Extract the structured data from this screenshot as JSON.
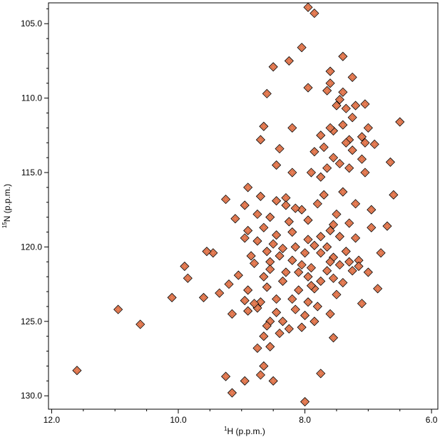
{
  "chart_data": {
    "type": "scatter",
    "title": "",
    "xlabel": {
      "sup": "1",
      "main": "H (p.p.m.)"
    },
    "ylabel": {
      "sup": "15",
      "main": "N (p.p.m.)"
    },
    "xlim": [
      12.05,
      5.9
    ],
    "ylim": [
      103.6,
      130.9
    ],
    "x_reversed": true,
    "y_reversed": true,
    "grid": false,
    "x_ticks": [
      {
        "value": 12.0,
        "label": "12.0"
      },
      {
        "value": 10.0,
        "label": "10.0"
      },
      {
        "value": 8.0,
        "label": "8.0"
      },
      {
        "value": 6.0,
        "label": "6.0"
      }
    ],
    "y_ticks": [
      {
        "value": 105.0,
        "label": "105.0"
      },
      {
        "value": 110.0,
        "label": "110.0"
      },
      {
        "value": 115.0,
        "label": "115.0"
      },
      {
        "value": 120.0,
        "label": "120.0"
      },
      {
        "value": 125.0,
        "label": "125.0"
      },
      {
        "value": 130.0,
        "label": "130.0"
      }
    ],
    "colors": {
      "peak_fill": "#e8825a",
      "peak_edge": "#000000"
    },
    "series": [
      {
        "points": [
          [
            7.95,
            103.9
          ],
          [
            7.85,
            104.3
          ],
          [
            8.05,
            106.6
          ],
          [
            8.25,
            107.5
          ],
          [
            8.5,
            107.9
          ],
          [
            7.6,
            108.2
          ],
          [
            7.4,
            107.2
          ],
          [
            7.25,
            108.6
          ],
          [
            7.6,
            109.0
          ],
          [
            7.95,
            109.3
          ],
          [
            7.65,
            109.5
          ],
          [
            7.4,
            109.6
          ],
          [
            8.6,
            109.7
          ],
          [
            7.45,
            110.1
          ],
          [
            7.5,
            110.5
          ],
          [
            7.2,
            110.5
          ],
          [
            7.35,
            110.7
          ],
          [
            7.05,
            110.4
          ],
          [
            7.25,
            111.3
          ],
          [
            7.4,
            111.8
          ],
          [
            7.55,
            112.2
          ],
          [
            7.0,
            112.0
          ],
          [
            7.1,
            112.6
          ],
          [
            7.3,
            112.8
          ],
          [
            7.6,
            112.0
          ],
          [
            7.05,
            113.0
          ],
          [
            6.5,
            111.6
          ],
          [
            8.65,
            111.9
          ],
          [
            8.2,
            112.0
          ],
          [
            8.7,
            112.8
          ],
          [
            7.75,
            112.5
          ],
          [
            7.7,
            113.3
          ],
          [
            7.35,
            113.0
          ],
          [
            7.25,
            113.5
          ],
          [
            6.9,
            113.1
          ],
          [
            8.4,
            113.4
          ],
          [
            7.85,
            113.6
          ],
          [
            7.55,
            114.0
          ],
          [
            7.1,
            114.1
          ],
          [
            8.45,
            114.5
          ],
          [
            7.65,
            114.7
          ],
          [
            7.45,
            114.4
          ],
          [
            7.3,
            114.7
          ],
          [
            6.65,
            114.3
          ],
          [
            7.05,
            115.0
          ],
          [
            7.75,
            115.3
          ],
          [
            7.9,
            115.0
          ],
          [
            8.2,
            115.0
          ],
          [
            8.9,
            116.0
          ],
          [
            8.7,
            116.6
          ],
          [
            8.45,
            116.9
          ],
          [
            8.75,
            117.8
          ],
          [
            8.3,
            116.7
          ],
          [
            8.05,
            117.5
          ],
          [
            7.7,
            116.5
          ],
          [
            7.4,
            116.3
          ],
          [
            7.2,
            117.1
          ],
          [
            6.95,
            117.5
          ],
          [
            6.6,
            116.5
          ],
          [
            9.25,
            116.8
          ],
          [
            8.95,
            117.2
          ],
          [
            9.1,
            118.1
          ],
          [
            8.9,
            118.9
          ],
          [
            8.55,
            118.0
          ],
          [
            8.3,
            117.2
          ],
          [
            8.15,
            117.4
          ],
          [
            7.95,
            118.2
          ],
          [
            7.8,
            117.1
          ],
          [
            7.5,
            117.8
          ],
          [
            7.3,
            118.4
          ],
          [
            7.55,
            118.5
          ],
          [
            8.65,
            118.7
          ],
          [
            8.95,
            119.4
          ],
          [
            8.5,
            119.8
          ],
          [
            8.2,
            119.0
          ],
          [
            7.95,
            119.5
          ],
          [
            7.75,
            119.3
          ],
          [
            7.45,
            119.3
          ],
          [
            7.2,
            119.4
          ],
          [
            6.95,
            118.7
          ],
          [
            6.7,
            118.6
          ],
          [
            8.6,
            120.3
          ],
          [
            8.4,
            120.6
          ],
          [
            8.2,
            120.9
          ],
          [
            8.0,
            120.4
          ],
          [
            7.75,
            120.4
          ],
          [
            7.55,
            120.7
          ],
          [
            7.35,
            120.3
          ],
          [
            7.15,
            120.9
          ],
          [
            6.8,
            120.4
          ],
          [
            9.45,
            120.4
          ],
          [
            8.8,
            121.1
          ],
          [
            8.55,
            121.0
          ],
          [
            8.3,
            121.7
          ],
          [
            8.1,
            121.7
          ],
          [
            7.9,
            121.4
          ],
          [
            7.65,
            121.6
          ],
          [
            7.45,
            121.2
          ],
          [
            7.25,
            121.6
          ],
          [
            9.05,
            121.9
          ],
          [
            8.65,
            122.0
          ],
          [
            8.35,
            122.3
          ],
          [
            7.95,
            122.0
          ],
          [
            7.75,
            122.3
          ],
          [
            7.55,
            122.1
          ],
          [
            7.0,
            121.7
          ],
          [
            9.2,
            122.5
          ],
          [
            8.9,
            122.9
          ],
          [
            8.6,
            122.7
          ],
          [
            8.1,
            122.9
          ],
          [
            7.85,
            122.8
          ],
          [
            7.4,
            122.4
          ],
          [
            9.35,
            123.1
          ],
          [
            9.6,
            123.4
          ],
          [
            8.95,
            123.6
          ],
          [
            8.7,
            123.7
          ],
          [
            8.45,
            123.5
          ],
          [
            8.2,
            123.5
          ],
          [
            7.95,
            123.7
          ],
          [
            7.5,
            123.2
          ],
          [
            6.85,
            122.8
          ],
          [
            8.75,
            124.1
          ],
          [
            8.45,
            124.4
          ],
          [
            8.15,
            124.2
          ],
          [
            7.8,
            124.0
          ],
          [
            7.1,
            123.8
          ],
          [
            9.15,
            124.5
          ],
          [
            8.9,
            124.3
          ],
          [
            8.55,
            125.0
          ],
          [
            8.35,
            125.0
          ],
          [
            8.0,
            124.6
          ],
          [
            7.6,
            124.5
          ],
          [
            8.6,
            125.3
          ],
          [
            8.25,
            125.5
          ],
          [
            8.05,
            125.4
          ],
          [
            7.85,
            125.0
          ],
          [
            8.65,
            126.0
          ],
          [
            8.4,
            125.8
          ],
          [
            7.55,
            126.1
          ],
          [
            8.75,
            126.8
          ],
          [
            8.55,
            126.7
          ],
          [
            8.65,
            128.0
          ],
          [
            8.7,
            128.6
          ],
          [
            7.75,
            128.5
          ],
          [
            9.25,
            128.7
          ],
          [
            9.15,
            129.8
          ],
          [
            8.95,
            129.0
          ],
          [
            8.5,
            129.0
          ],
          [
            8.0,
            130.4
          ],
          [
            11.6,
            128.3
          ],
          [
            10.95,
            124.2
          ],
          [
            10.6,
            125.2
          ],
          [
            10.1,
            123.4
          ],
          [
            9.85,
            122.1
          ],
          [
            9.55,
            120.3
          ],
          [
            9.9,
            121.3
          ],
          [
            8.8,
            123.8
          ],
          [
            8.35,
            120.1
          ],
          [
            7.65,
            120.0
          ],
          [
            7.85,
            119.9
          ],
          [
            8.85,
            120.6
          ],
          [
            8.25,
            118.3
          ],
          [
            7.6,
            118.9
          ],
          [
            8.45,
            119.2
          ],
          [
            8.15,
            120.0
          ],
          [
            7.9,
            122.6
          ],
          [
            8.05,
            121.2
          ],
          [
            7.6,
            121.0
          ],
          [
            7.3,
            121.0
          ],
          [
            7.15,
            121.3
          ],
          [
            8.75,
            119.6
          ],
          [
            8.55,
            121.5
          ]
        ]
      }
    ]
  }
}
